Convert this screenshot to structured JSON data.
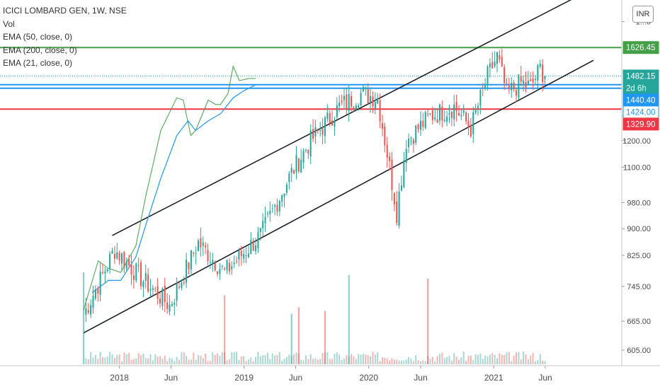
{
  "chart_data": {
    "type": "candlestick",
    "symbol": "ICICI LOMBARD GEN, 1W, NSE",
    "indicators": [
      "Vol",
      "EMA (50, close, 0)",
      "EMA (200, close, 0)",
      "EMA (21, close, 0)"
    ],
    "currency_button": "INR",
    "y_scale": "log",
    "ylim": [
      575,
      1900
    ],
    "y_ticks": [
      "1...0",
      "1300.00",
      "1200.00",
      "1100.00",
      "980.00",
      "900.00",
      "825.00",
      "745.00",
      "665.00",
      "605.00"
    ],
    "y_tick_values": [
      1770,
      1300,
      1200,
      1100,
      980,
      900,
      825,
      745,
      665,
      605
    ],
    "x_ticks": [
      "2018",
      "Jun",
      "2019",
      "Jun",
      "2020",
      "Jun",
      "2021",
      "Jun"
    ],
    "x_tick_dates": [
      "2018-01-01",
      "2018-06-01",
      "2019-01-01",
      "2019-06-01",
      "2020-01-01",
      "2020-06-01",
      "2021-01-01",
      "2021-06-01"
    ],
    "x_range": [
      "2017-09-18",
      "2021-10-20"
    ],
    "price_labels": [
      {
        "text": "1626.45",
        "value": 1626.45,
        "color": "#43a047",
        "style": "fill"
      },
      {
        "text": "1482.15",
        "value": 1482.15,
        "color": "#26a69a",
        "style": "fill"
      },
      {
        "text": "2d 6h",
        "value": 1458,
        "color": "#26a69a",
        "style": "fill"
      },
      {
        "text": "1440.40",
        "value": 1440.4,
        "color": "#2196f3",
        "style": "fill"
      },
      {
        "text": "1424.00",
        "value": 1424,
        "color": "#2196f3",
        "style": "outline"
      },
      {
        "text": "1329.90",
        "value": 1329.9,
        "color": "#f23645",
        "style": "fill"
      }
    ],
    "horizontal_lines": [
      {
        "value": 1626.45,
        "color": "#43a047"
      },
      {
        "value": 1440.4,
        "color": "#2196f3"
      },
      {
        "value": 1424,
        "color": "#2196f3"
      },
      {
        "value": 1329.9,
        "color": "#f23645"
      }
    ],
    "trend_lines": [
      {
        "from": {
          "date": "2017-12-11",
          "price": 880
        },
        "to": {
          "date": "2021-08-23",
          "price": 1910
        }
      },
      {
        "from": {
          "date": "2017-09-18",
          "price": 640
        },
        "to": {
          "date": "2021-10-20",
          "price": 1560
        }
      }
    ],
    "key_closes": [
      {
        "date": "2017-09-18",
        "close": 680
      },
      {
        "date": "2017-12-18",
        "close": 840
      },
      {
        "date": "2018-03-12",
        "close": 760
      },
      {
        "date": "2018-05-28",
        "close": 700
      },
      {
        "date": "2018-08-20",
        "close": 860
      },
      {
        "date": "2018-11-05",
        "close": 780
      },
      {
        "date": "2019-02-18",
        "close": 880
      },
      {
        "date": "2019-05-20",
        "close": 1080
      },
      {
        "date": "2019-07-15",
        "close": 1200
      },
      {
        "date": "2019-10-07",
        "close": 1340
      },
      {
        "date": "2019-12-09",
        "close": 1400
      },
      {
        "date": "2020-01-27",
        "close": 1380
      },
      {
        "date": "2020-03-02",
        "close": 1100
      },
      {
        "date": "2020-03-23",
        "close": 950
      },
      {
        "date": "2020-04-20",
        "close": 1200
      },
      {
        "date": "2020-06-29",
        "close": 1300
      },
      {
        "date": "2020-09-07",
        "close": 1340
      },
      {
        "date": "2020-10-26",
        "close": 1250
      },
      {
        "date": "2020-12-14",
        "close": 1480
      },
      {
        "date": "2021-01-11",
        "close": 1580
      },
      {
        "date": "2021-02-08",
        "close": 1400
      },
      {
        "date": "2021-03-22",
        "close": 1450
      },
      {
        "date": "2021-04-19",
        "close": 1430
      },
      {
        "date": "2021-05-17",
        "close": 1520
      },
      {
        "date": "2021-05-31",
        "close": 1482.15
      }
    ],
    "ema_21": [
      [
        0,
        690
      ],
      [
        0.12,
        810
      ],
      [
        0.2,
        790
      ],
      [
        0.3,
        780
      ],
      [
        0.42,
        850
      ],
      [
        0.5,
        1000
      ],
      [
        0.62,
        1240
      ],
      [
        0.75,
        1380
      ],
      [
        0.8,
        1370
      ],
      [
        0.86,
        1220
      ],
      [
        0.9,
        1240
      ],
      [
        0.97,
        1330
      ],
      [
        1,
        1370
      ],
      [
        1.06,
        1350
      ],
      [
        1.1,
        1350
      ],
      [
        1.16,
        1400
      ],
      [
        1.2,
        1530
      ],
      [
        1.25,
        1460
      ],
      [
        1.33,
        1470
      ],
      [
        1.38,
        1470
      ]
    ],
    "ema_50": [
      [
        0.07,
        730
      ],
      [
        0.2,
        760
      ],
      [
        0.3,
        760
      ],
      [
        0.42,
        820
      ],
      [
        0.5,
        910
      ],
      [
        0.62,
        1060
      ],
      [
        0.75,
        1220
      ],
      [
        0.84,
        1280
      ],
      [
        0.9,
        1240
      ],
      [
        1,
        1280
      ],
      [
        1.1,
        1310
      ],
      [
        1.2,
        1380
      ],
      [
        1.28,
        1410
      ],
      [
        1.38,
        1440.4
      ]
    ],
    "volume_spikes": [
      {
        "date": "2017-09-18",
        "rel": 1.0,
        "color": "#26a69a"
      },
      {
        "date": "2018-11-05",
        "rel": 0.75,
        "color": "#ef5350"
      },
      {
        "date": "2019-05-20",
        "rel": 0.55,
        "color": "#26a69a"
      },
      {
        "date": "2019-06-10",
        "rel": 0.62,
        "color": "#ef5350"
      },
      {
        "date": "2019-08-26",
        "rel": 0.58,
        "color": "#ef5350"
      },
      {
        "date": "2019-11-04",
        "rel": 0.97,
        "color": "#26a69a"
      },
      {
        "date": "2020-06-22",
        "rel": 0.93,
        "color": "#ef5350"
      }
    ]
  }
}
